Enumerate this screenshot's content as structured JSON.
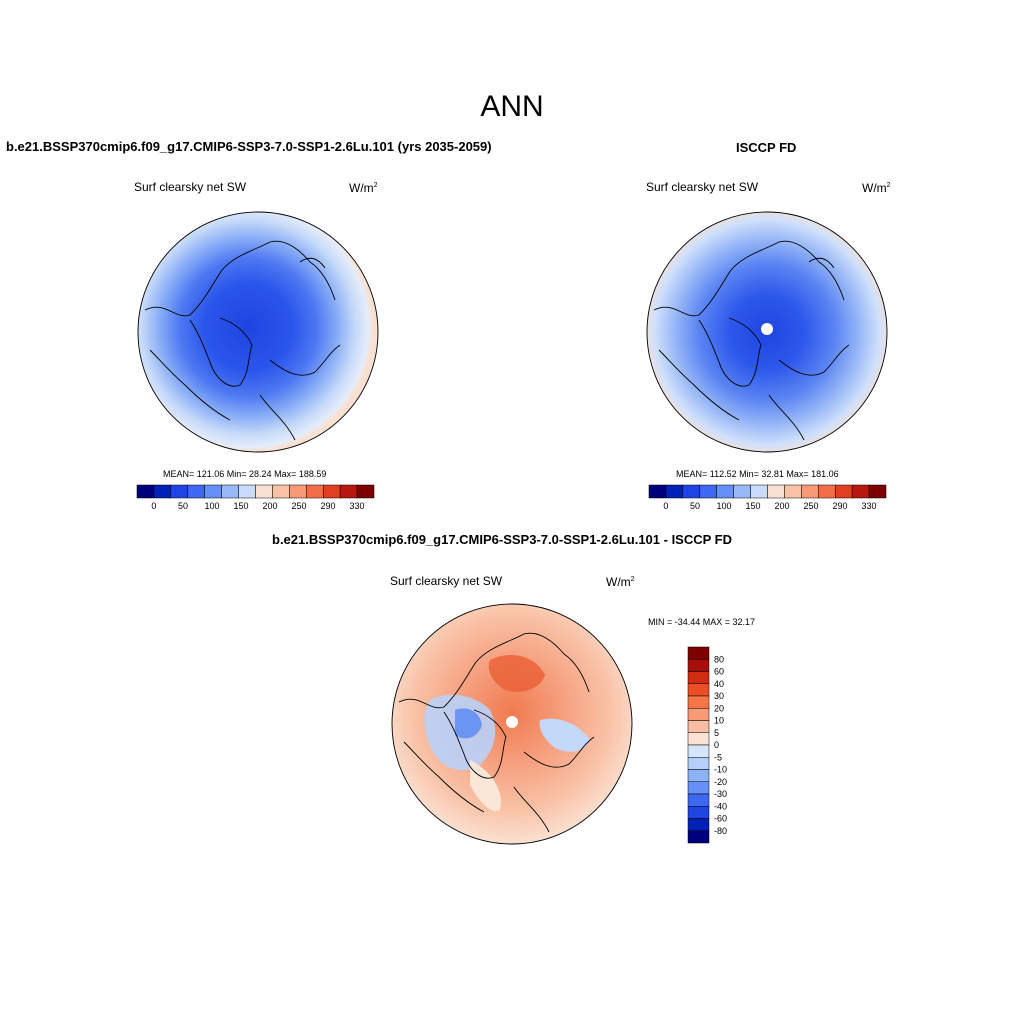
{
  "page": {
    "title": "ANN",
    "diff_title": "b.e21.BSSP370cmip6.f09_g17.CMIP6-SSP3-7.0-SSP1-2.6Lu.101 - ISCCP FD"
  },
  "panels": [
    {
      "title": "b.e21.BSSP370cmip6.f09_g17.CMIP6-SSP3-7.0-SSP1-2.6Lu.101 (yrs 2035-2059)",
      "variable": "Surf clearsky net SW",
      "units": "W/m",
      "units_sup": "2",
      "stats": "MEAN= 121.06  Min=  28.24  Max= 188.59"
    },
    {
      "title": "ISCCP FD",
      "variable": "Surf clearsky net SW",
      "units": "W/m",
      "units_sup": "2",
      "stats": "MEAN= 112.52  Min=  32.81  Max= 181.06"
    }
  ],
  "diff_panel": {
    "variable": "Surf clearsky net SW",
    "units": "W/m",
    "units_sup": "2",
    "stats": "MIN = -34.44 MAX =  32.17"
  },
  "colorbar_main": {
    "colors": [
      "#00007a",
      "#0021b5",
      "#1f45e0",
      "#3d68f0",
      "#6690f5",
      "#99b8f8",
      "#c9dcfb",
      "#f8e1d2",
      "#f9c1a6",
      "#f89a76",
      "#f26d4a",
      "#e0401f",
      "#b8160e",
      "#7d0000"
    ],
    "labels": [
      "0",
      "50",
      "100",
      "150",
      "200",
      "250",
      "290",
      "330"
    ]
  },
  "colorbar_diff": {
    "colors": [
      "#7d0000",
      "#a80f0a",
      "#d12c0f",
      "#ea4f26",
      "#f57547",
      "#f89a76",
      "#f9bea3",
      "#fce2d2",
      "#d6e5fb",
      "#b4cff9",
      "#8eb2f6",
      "#6690f5",
      "#3d68f0",
      "#1f45e0",
      "#0021b5",
      "#00007a"
    ],
    "labels": [
      "80",
      "60",
      "40",
      "30",
      "20",
      "10",
      "5",
      "0",
      "-5",
      "-10",
      "-20",
      "-30",
      "-40",
      "-60",
      "-80"
    ]
  }
}
